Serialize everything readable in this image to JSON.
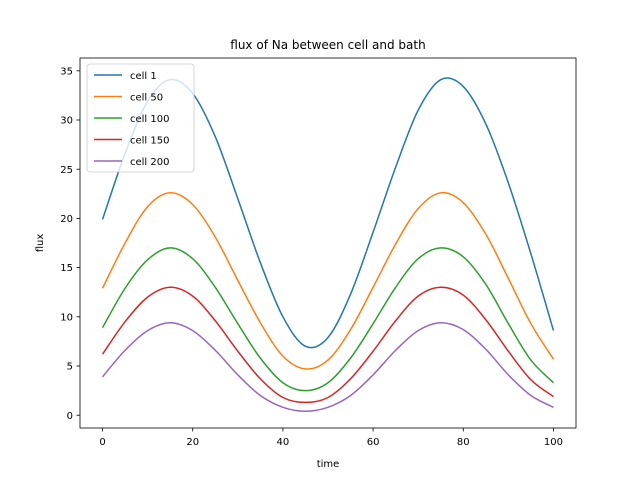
{
  "chart_data": {
    "type": "line",
    "title": "flux of Na between cell and bath",
    "xlabel": "time",
    "ylabel": "flux",
    "xlim": [
      -5,
      105
    ],
    "ylim": [
      -1.3,
      36.3
    ],
    "xticks": [
      0,
      20,
      40,
      60,
      80,
      100
    ],
    "yticks": [
      0,
      5,
      10,
      15,
      20,
      25,
      30,
      35
    ],
    "grid": false,
    "legend_position": "upper-left",
    "colors": {
      "cell 1": "#1f77b4",
      "cell 50": "#ff7f0e",
      "cell 100": "#2ca02c",
      "cell 150": "#d62728",
      "cell 200": "#9467bd"
    },
    "series": [
      {
        "name": "cell 1",
        "x": [
          0,
          5,
          10,
          15,
          20,
          25,
          30,
          35,
          40,
          45,
          50,
          55,
          60,
          65,
          70,
          75,
          80,
          85,
          90,
          95,
          100
        ],
        "values": [
          19.9,
          26.6,
          31.9,
          34.1,
          32.7,
          28.3,
          22.0,
          15.5,
          10.0,
          7.0,
          7.9,
          12.3,
          18.6,
          25.2,
          31.0,
          34.1,
          33.4,
          29.6,
          23.6,
          16.4,
          8.6
        ]
      },
      {
        "name": "cell 50",
        "x": [
          0,
          5,
          10,
          15,
          20,
          25,
          30,
          35,
          40,
          45,
          50,
          55,
          60,
          65,
          70,
          75,
          80,
          85,
          90,
          95,
          100
        ],
        "values": [
          12.9,
          17.5,
          21.2,
          22.6,
          21.4,
          18.1,
          13.7,
          9.4,
          6.0,
          4.7,
          5.6,
          8.7,
          13.0,
          17.4,
          21.0,
          22.6,
          21.6,
          18.4,
          13.9,
          9.3,
          5.7
        ]
      },
      {
        "name": "cell 100",
        "x": [
          0,
          5,
          10,
          15,
          20,
          25,
          30,
          35,
          40,
          45,
          50,
          55,
          60,
          65,
          70,
          75,
          80,
          85,
          90,
          95,
          100
        ],
        "values": [
          8.9,
          12.9,
          15.8,
          17.0,
          15.9,
          13.0,
          9.3,
          5.8,
          3.3,
          2.5,
          3.3,
          5.8,
          9.3,
          13.0,
          15.9,
          17.0,
          16.1,
          13.3,
          9.3,
          5.6,
          3.3
        ]
      },
      {
        "name": "cell 150",
        "x": [
          0,
          5,
          10,
          15,
          20,
          25,
          30,
          35,
          40,
          45,
          50,
          55,
          60,
          65,
          70,
          75,
          80,
          85,
          90,
          95,
          100
        ],
        "values": [
          6.2,
          9.5,
          12.0,
          13.0,
          12.1,
          9.6,
          6.5,
          3.7,
          1.8,
          1.3,
          1.8,
          3.7,
          6.5,
          9.6,
          12.1,
          13.0,
          12.2,
          9.7,
          6.5,
          3.6,
          1.9
        ]
      },
      {
        "name": "cell 200",
        "x": [
          0,
          5,
          10,
          15,
          20,
          25,
          30,
          35,
          40,
          45,
          50,
          55,
          60,
          65,
          70,
          75,
          80,
          85,
          90,
          95,
          100
        ],
        "values": [
          3.9,
          6.6,
          8.6,
          9.4,
          8.6,
          6.6,
          4.1,
          2.0,
          0.8,
          0.4,
          0.8,
          2.0,
          4.1,
          6.6,
          8.6,
          9.4,
          8.7,
          6.7,
          4.1,
          2.0,
          0.8
        ]
      }
    ]
  }
}
